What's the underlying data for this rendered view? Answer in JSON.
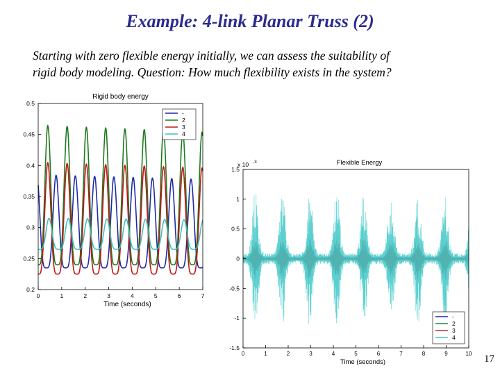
{
  "slide": {
    "title": "Example: 4-link Planar Truss (2)",
    "text_line1": "Starting with zero flexible energy initially, we can assess the suitability of",
    "text_line2": "rigid body modeling.  Question:  How much flexibility exists in the system?",
    "page_number": "17"
  },
  "chart_data": [
    {
      "type": "line",
      "title": "Rigid body energy",
      "xlabel": "Time (seconds)",
      "ylabel": "",
      "xlim": [
        0,
        7
      ],
      "ylim": [
        0.2,
        0.5
      ],
      "xticks": [
        "0",
        "1",
        "2",
        "3",
        "4",
        "5",
        "6",
        "7"
      ],
      "yticks": [
        "0.2",
        "0.25",
        "0.3",
        "0.35",
        "0.4",
        "0.45",
        "0.5"
      ],
      "legend": {
        "position": "top-right",
        "labels": [
          "-",
          "2",
          "3",
          "4"
        ]
      },
      "series": [
        {
          "name": "-",
          "color": "#1f2aa8",
          "period": 0.82,
          "phase": 0.35,
          "base": 0.235,
          "peak": 0.385
        },
        {
          "name": "2",
          "color": "#1e7a1e",
          "period": 0.82,
          "phase": 0.0,
          "base": 0.24,
          "peak": 0.465
        },
        {
          "name": "3",
          "color": "#c01818",
          "period": 0.82,
          "phase": 0.0,
          "base": 0.225,
          "peak": 0.405
        },
        {
          "name": "4",
          "color": "#3cc2c2",
          "period": 0.82,
          "phase": 0.05,
          "base": 0.265,
          "peak": 0.315
        }
      ]
    },
    {
      "type": "line",
      "title": "Flexible Energy",
      "xlabel": "Time (seconds)",
      "ylabel": "",
      "scale_label": "x 10",
      "scale_exponent": "-3",
      "xlim": [
        0,
        10
      ],
      "ylim": [
        -1.5,
        1.5
      ],
      "xticks": [
        "0",
        "1",
        "2",
        "3",
        "4",
        "5",
        "6",
        "7",
        "8",
        "9",
        "10"
      ],
      "yticks": [
        "-1.5",
        "-1",
        "-0.5",
        "0",
        "0.5",
        "1",
        "1.5"
      ],
      "legend": {
        "position": "bottom-right",
        "labels": [
          "-",
          "2",
          "3",
          "4"
        ]
      },
      "series": [
        {
          "name": "-",
          "color": "#1f2aa8",
          "amplitude": 0.12
        },
        {
          "name": "2",
          "color": "#2a8a3a",
          "amplitude": 0.25
        },
        {
          "name": "3",
          "color": "#c03030",
          "amplitude": 0.35
        },
        {
          "name": "4",
          "color": "#40c8c8",
          "amplitude": 1.1
        }
      ],
      "burst_period": 1.2,
      "burst_first": 0.55
    }
  ]
}
